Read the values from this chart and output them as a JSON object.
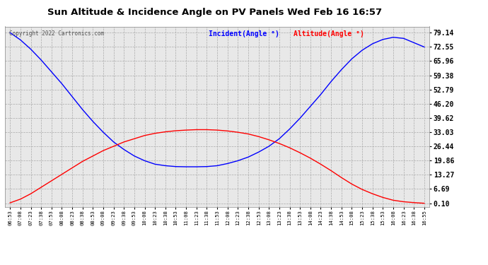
{
  "title": "Sun Altitude & Incidence Angle on PV Panels Wed Feb 16 16:57",
  "copyright": "Copyright 2022 Cartronics.com",
  "legend_incident": "Incident(Angle °)",
  "legend_altitude": "Altitude(Angle °)",
  "incident_color": "#0000ff",
  "altitude_color": "#ff0000",
  "yticks": [
    0.1,
    6.69,
    13.27,
    19.86,
    26.44,
    33.03,
    39.62,
    46.2,
    52.79,
    59.38,
    65.96,
    72.55,
    79.14
  ],
  "ytick_labels": [
    "0.10",
    "6.69",
    "13.27",
    "19.86",
    "26.44",
    "33.03",
    "39.62",
    "46.20",
    "52.79",
    "59.38",
    "65.96",
    "72.55",
    "79.14"
  ],
  "ylim": [
    -1.5,
    82.0
  ],
  "background_color": "#ffffff",
  "plot_bg_color": "#e8e8e8",
  "xtick_labels": [
    "06:53",
    "07:08",
    "07:23",
    "07:38",
    "07:53",
    "08:08",
    "08:23",
    "08:38",
    "08:53",
    "09:08",
    "09:23",
    "09:38",
    "09:53",
    "10:08",
    "10:23",
    "10:38",
    "10:53",
    "11:08",
    "11:23",
    "11:38",
    "11:53",
    "12:08",
    "12:23",
    "12:38",
    "12:53",
    "13:08",
    "13:23",
    "13:38",
    "13:53",
    "14:08",
    "14:23",
    "14:38",
    "14:53",
    "15:08",
    "15:23",
    "15:38",
    "15:53",
    "16:08",
    "16:23",
    "16:38",
    "16:55"
  ],
  "incident_y": [
    79.14,
    75.8,
    71.5,
    66.5,
    61.0,
    55.5,
    49.5,
    43.5,
    38.0,
    33.0,
    28.5,
    25.0,
    22.0,
    19.8,
    18.2,
    17.5,
    17.1,
    17.0,
    17.0,
    17.1,
    17.5,
    18.5,
    19.8,
    21.5,
    23.8,
    26.5,
    30.0,
    34.5,
    39.5,
    45.0,
    50.5,
    56.5,
    62.0,
    67.0,
    71.0,
    74.0,
    76.0,
    77.0,
    76.5,
    74.5,
    72.5
  ],
  "altitude_y": [
    0.3,
    2.0,
    4.5,
    7.5,
    10.5,
    13.5,
    16.5,
    19.5,
    22.0,
    24.5,
    26.5,
    28.5,
    30.0,
    31.5,
    32.5,
    33.2,
    33.7,
    34.0,
    34.2,
    34.2,
    34.0,
    33.6,
    33.0,
    32.2,
    31.0,
    29.5,
    27.8,
    25.8,
    23.5,
    21.0,
    18.2,
    15.2,
    12.0,
    9.0,
    6.5,
    4.5,
    2.8,
    1.5,
    0.8,
    0.4,
    0.1
  ]
}
